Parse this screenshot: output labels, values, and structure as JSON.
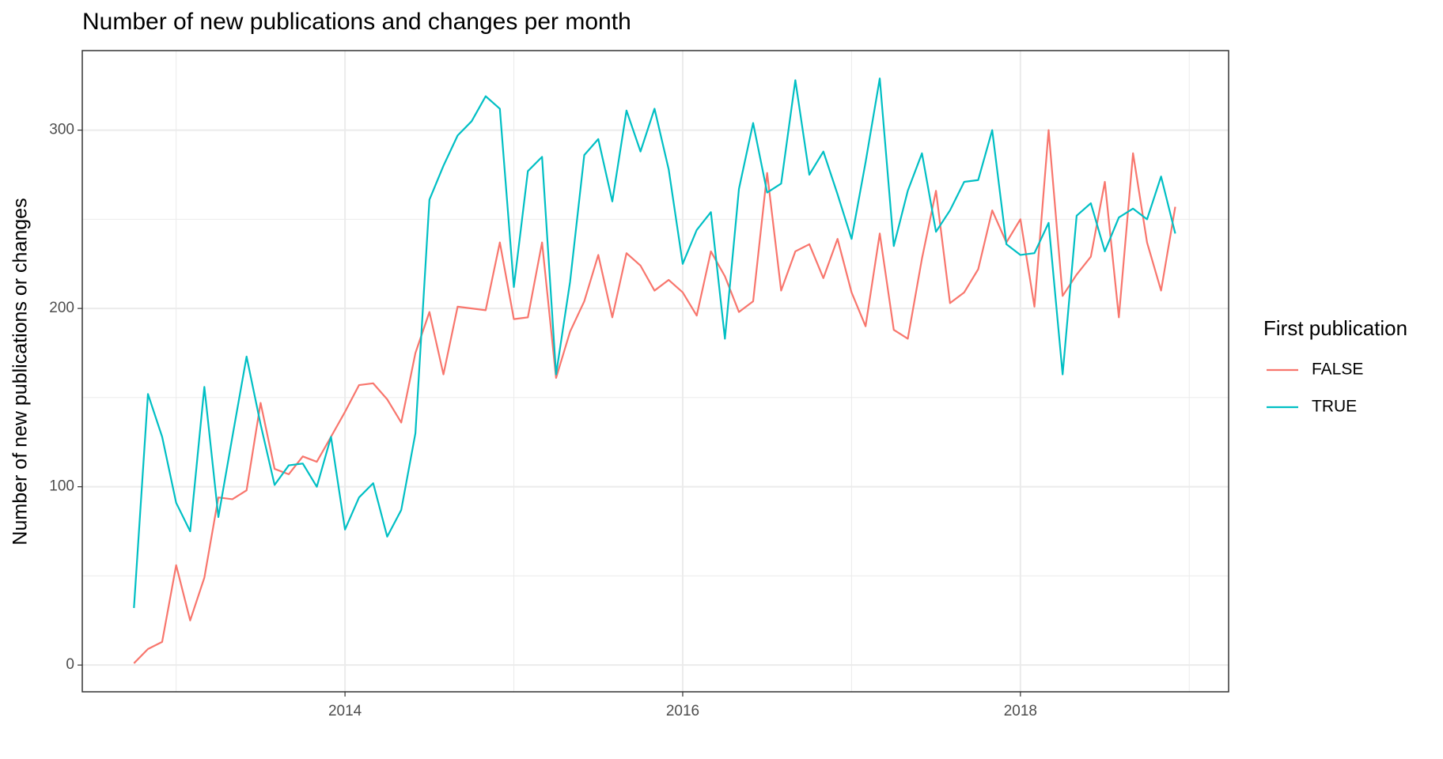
{
  "chart_data": {
    "type": "line",
    "title": "Number of new publications and changes per month",
    "y_label": "Number of new publications or changes",
    "legend_title": "First publication",
    "legend_position": "right",
    "grid": true,
    "xlim": [
      2012.444,
      2019.233
    ],
    "ylim": [
      -15,
      344.6
    ],
    "xticks": [
      2014,
      2016,
      2018
    ],
    "yticks": [
      0,
      100,
      200,
      300
    ],
    "x_minor_grid": [
      2013,
      2015,
      2017,
      2019
    ],
    "y_minor_grid": [
      50,
      150,
      250
    ],
    "x": [
      2012.75,
      2012.833,
      2012.917,
      2013,
      2013.083,
      2013.167,
      2013.25,
      2013.333,
      2013.417,
      2013.5,
      2013.583,
      2013.667,
      2013.75,
      2013.833,
      2013.917,
      2014,
      2014.083,
      2014.167,
      2014.25,
      2014.333,
      2014.417,
      2014.5,
      2014.583,
      2014.667,
      2014.75,
      2014.833,
      2014.917,
      2015,
      2015.083,
      2015.167,
      2015.25,
      2015.333,
      2015.417,
      2015.5,
      2015.583,
      2015.667,
      2015.75,
      2015.833,
      2015.917,
      2016,
      2016.083,
      2016.167,
      2016.25,
      2016.333,
      2016.417,
      2016.5,
      2016.583,
      2016.667,
      2016.75,
      2016.833,
      2016.917,
      2017,
      2017.083,
      2017.167,
      2017.25,
      2017.333,
      2017.417,
      2017.5,
      2017.583,
      2017.667,
      2017.75,
      2017.833,
      2017.917,
      2018,
      2018.083,
      2018.167,
      2018.25,
      2018.333,
      2018.417,
      2018.5,
      2018.583,
      2018.667,
      2018.75,
      2018.833,
      2018.917
    ],
    "series": [
      {
        "name": "FALSE",
        "color": "#f8766d",
        "values": [
          1,
          9,
          13,
          56,
          25,
          49,
          94,
          93,
          98,
          147,
          110,
          107,
          117,
          114,
          128,
          142,
          157,
          158,
          149,
          136,
          175,
          198,
          163,
          201,
          200,
          199,
          237,
          194,
          195,
          237,
          161,
          187,
          204,
          230,
          195,
          231,
          224,
          210,
          216,
          209,
          196,
          232,
          218,
          198,
          204,
          276,
          210,
          232,
          236,
          217,
          239,
          209,
          190,
          242,
          188,
          183,
          228,
          266,
          203,
          209,
          222,
          255,
          237,
          250,
          201,
          300,
          207,
          219,
          229,
          271,
          195,
          287,
          237,
          210,
          257
        ]
      },
      {
        "name": "TRUE",
        "color": "#00bfc4",
        "values": [
          32,
          152,
          128,
          91,
          75,
          156,
          83,
          128,
          173,
          135,
          101,
          112,
          113,
          100,
          128,
          76,
          94,
          102,
          72,
          87,
          130,
          261,
          280,
          297,
          305,
          319,
          312,
          212,
          277,
          285,
          163,
          215,
          286,
          295,
          260,
          311,
          288,
          312,
          278,
          225,
          244,
          254,
          183,
          267,
          304,
          265,
          270,
          328,
          275,
          288,
          264,
          239,
          282,
          329,
          235,
          266,
          287,
          243,
          255,
          271,
          272,
          300,
          236,
          230,
          231,
          248,
          163,
          252,
          259,
          232,
          251,
          256,
          250,
          274,
          242
        ]
      }
    ]
  }
}
